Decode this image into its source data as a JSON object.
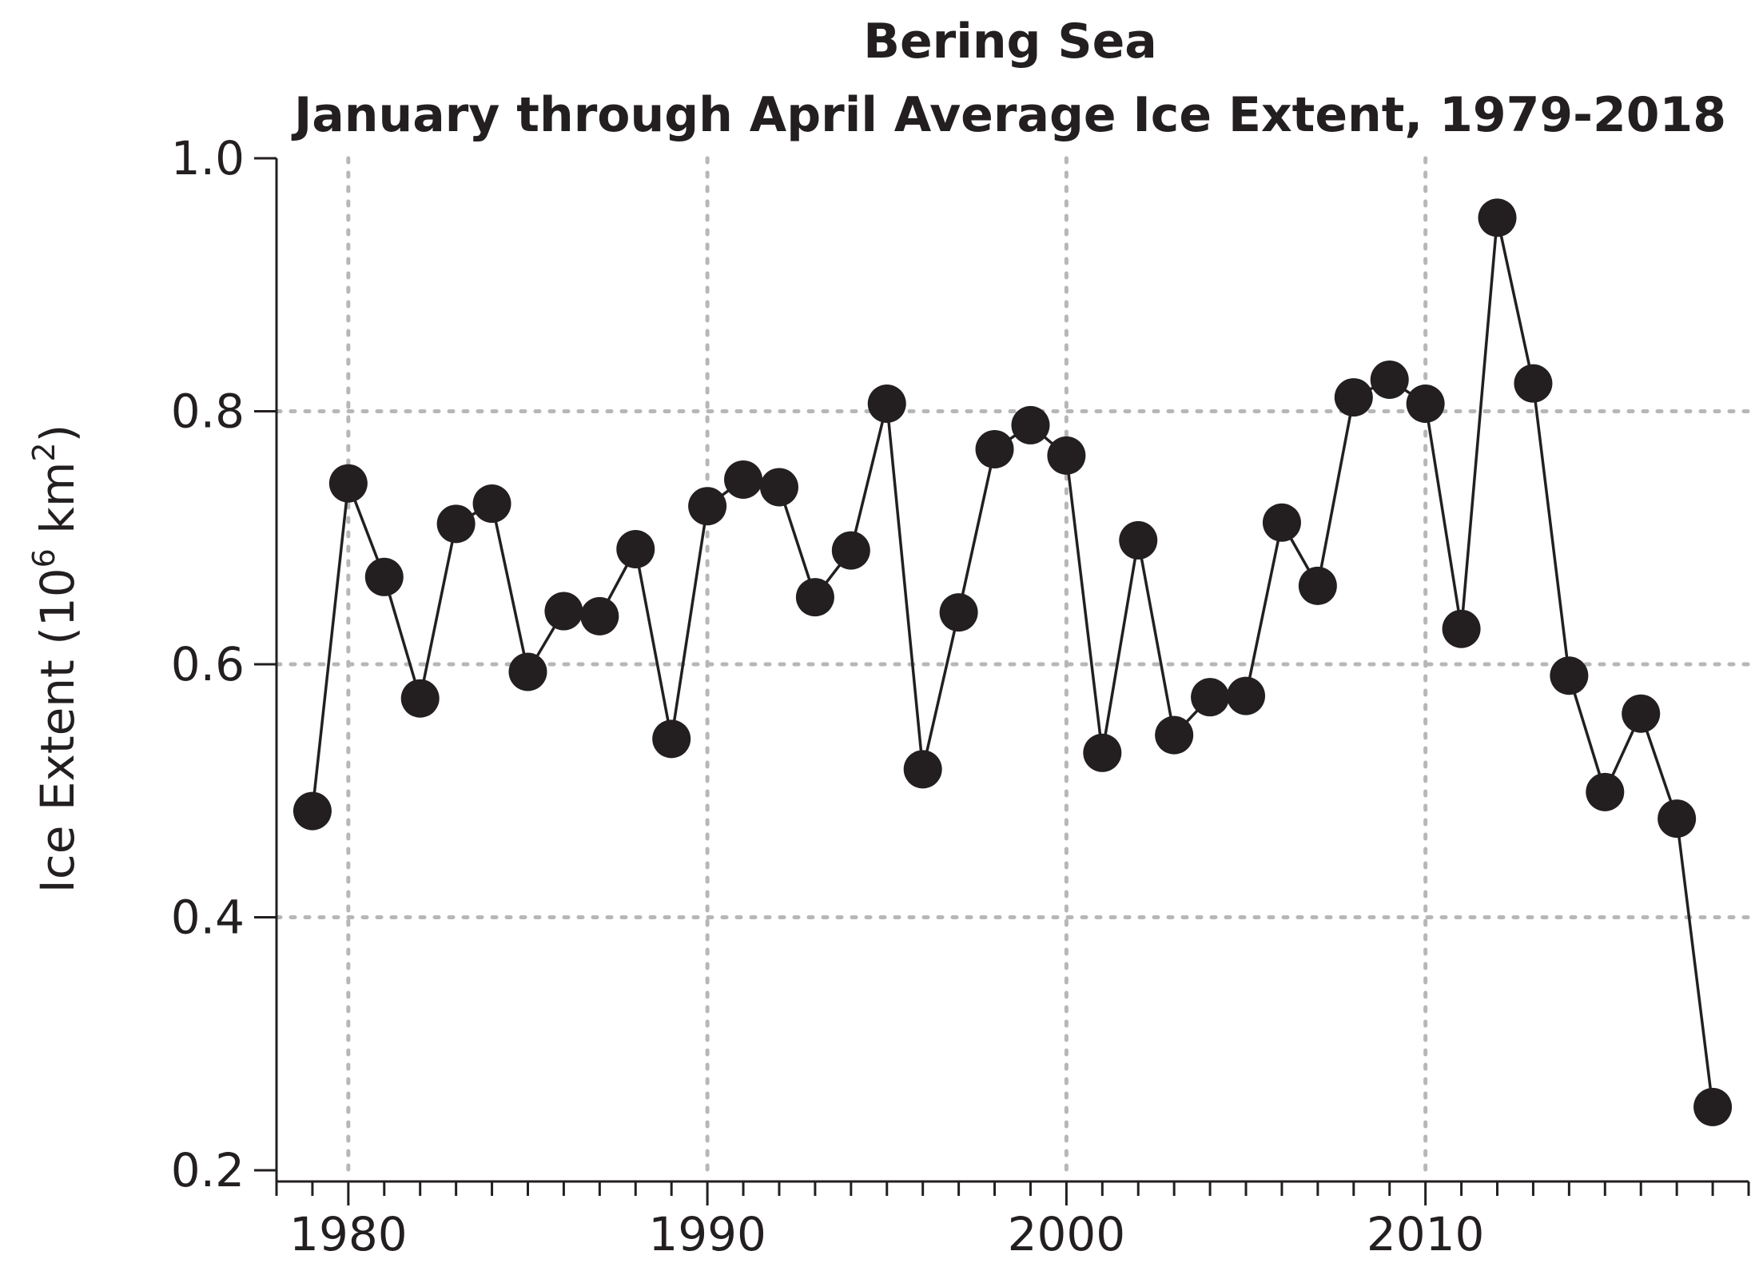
{
  "chart_data": {
    "type": "line",
    "title_line1": "Bering Sea",
    "title_line2": "January through April Average Ice Extent, 1979-2018",
    "xlabel": "",
    "ylabel_prefix": "Ice Extent (10",
    "ylabel_exponent": "6",
    "ylabel_unit": " km",
    "ylabel_unit_exponent": "2",
    "ylabel_suffix": ")",
    "xlim": [
      1978,
      2019
    ],
    "ylim": [
      0.2,
      1.0
    ],
    "x_ticks": [
      1980,
      1990,
      2000,
      2010
    ],
    "x_tick_labels": [
      "1980",
      "1990",
      "2000",
      "2010"
    ],
    "y_ticks": [
      0.2,
      0.4,
      0.6,
      0.8,
      1.0
    ],
    "y_tick_labels": [
      "0.2",
      "0.4",
      "0.6",
      "0.8",
      "1.0"
    ],
    "grid": true,
    "line_color": "#231f20",
    "grid_color": "#b7b7b7",
    "series": [
      {
        "name": "Ice Extent",
        "x": [
          1979,
          1980,
          1981,
          1982,
          1983,
          1984,
          1985,
          1986,
          1987,
          1988,
          1989,
          1990,
          1991,
          1992,
          1993,
          1994,
          1995,
          1996,
          1997,
          1998,
          1999,
          2000,
          2001,
          2002,
          2003,
          2004,
          2005,
          2006,
          2007,
          2008,
          2009,
          2010,
          2011,
          2012,
          2013,
          2014,
          2015,
          2016,
          2017,
          2018
        ],
        "values": [
          0.484,
          0.743,
          0.669,
          0.573,
          0.711,
          0.727,
          0.594,
          0.642,
          0.638,
          0.691,
          0.541,
          0.725,
          0.746,
          0.74,
          0.653,
          0.69,
          0.806,
          0.517,
          0.641,
          0.77,
          0.789,
          0.765,
          0.53,
          0.698,
          0.544,
          0.574,
          0.575,
          0.712,
          0.662,
          0.811,
          0.825,
          0.806,
          0.628,
          0.953,
          0.822,
          0.591,
          0.499,
          0.561,
          0.478,
          0.25
        ]
      }
    ]
  }
}
